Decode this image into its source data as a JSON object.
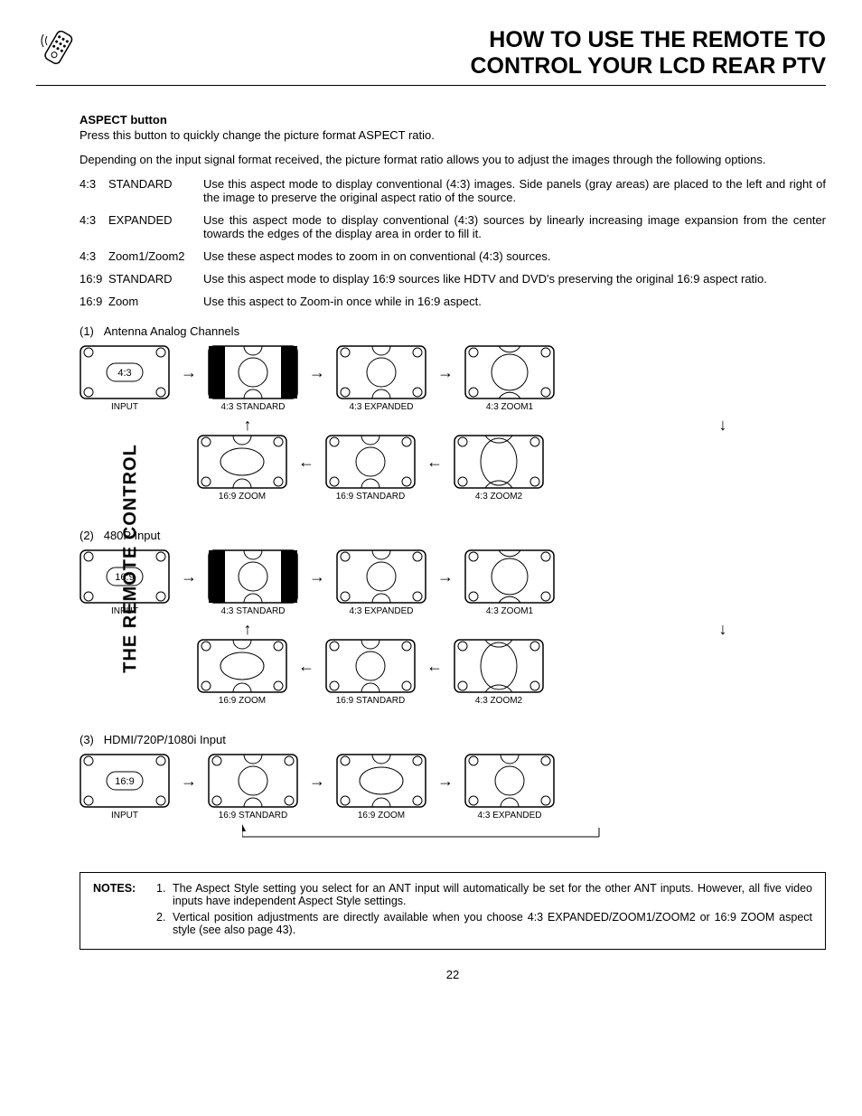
{
  "header": {
    "title_line1": "HOW TO USE THE REMOTE TO",
    "title_line2": "CONTROL YOUR LCD REAR PTV"
  },
  "side_label": "THE REMOTE CONTROL",
  "aspect": {
    "heading": "ASPECT button",
    "intro": "Press this button to quickly change the picture format ASPECT ratio.",
    "desc": "Depending on the input signal format received, the picture format ratio allows you to adjust the images through the following options.",
    "rows": [
      {
        "ratio": "4:3",
        "name": "STANDARD",
        "desc": "Use this aspect mode to display conventional (4:3) images.  Side panels (gray areas) are placed to the left and right of the image to preserve the original aspect ratio of the source."
      },
      {
        "ratio": "4:3",
        "name": "EXPANDED",
        "desc": "Use this aspect mode to display conventional (4:3) sources by linearly increasing image expansion from the center towards the edges of the display area in order to fill it."
      },
      {
        "ratio": "4:3",
        "name": "Zoom1/Zoom2",
        "desc": "Use these aspect modes to zoom in on conventional (4:3) sources."
      },
      {
        "ratio": "16:9",
        "name": "STANDARD",
        "desc": "Use this aspect mode to display 16:9 sources like HDTV and DVD's preserving the original 16:9 aspect ratio."
      },
      {
        "ratio": "16:9",
        "name": "Zoom",
        "desc": "Use this aspect to Zoom-in once while in 16:9 aspect."
      }
    ]
  },
  "diagrams": [
    {
      "num": "(1)",
      "title": "Antenna Analog Channels",
      "input_label": "4:3",
      "top_row": [
        "INPUT",
        "4:3 STANDARD",
        "4:3 EXPANDED",
        "4:3 ZOOM1"
      ],
      "bottom_row": [
        "16:9 ZOOM",
        "16:9 STANDARD",
        "4:3 ZOOM2"
      ],
      "two_rows": true
    },
    {
      "num": "(2)",
      "title": "480P Input",
      "input_label": "16:9",
      "top_row": [
        "INPUT",
        "4:3 STANDARD",
        "4:3 EXPANDED",
        "4:3 ZOOM1"
      ],
      "bottom_row": [
        "16:9 ZOOM",
        "16:9 STANDARD",
        "4:3 ZOOM2"
      ],
      "two_rows": true
    },
    {
      "num": "(3)",
      "title": "HDMI/720P/1080i Input",
      "input_label": "16:9",
      "top_row": [
        "INPUT",
        "16:9 STANDARD",
        "16:9 ZOOM",
        "4:3 EXPANDED"
      ],
      "two_rows": false
    }
  ],
  "notes": {
    "label": "NOTES:",
    "items": [
      {
        "num": "1.",
        "text": "The Aspect Style setting you select for an ANT input will automatically be set for the other ANT inputs.  However, all five video inputs have independent Aspect Style settings."
      },
      {
        "num": "2.",
        "text": "Vertical position adjustments are directly available when you choose 4:3 EXPANDED/ZOOM1/ZOOM2 or 16:9 ZOOM aspect style (see also page 43)."
      }
    ]
  },
  "page_number": "22",
  "svg": {
    "stroke": "#000",
    "fill_panel": "#000"
  }
}
